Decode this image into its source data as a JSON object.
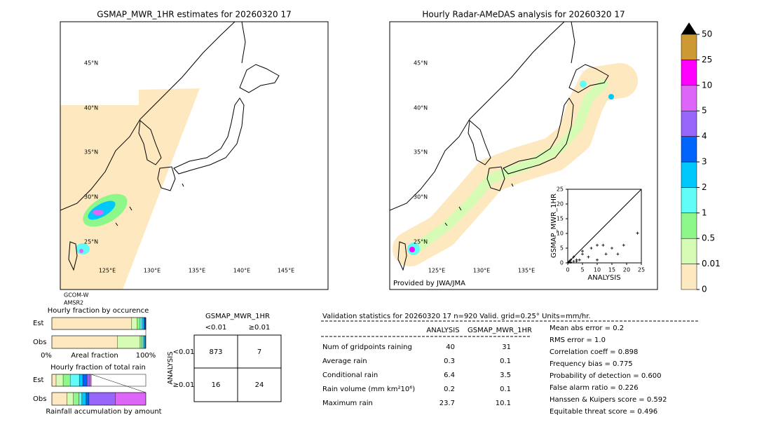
{
  "left_map": {
    "title": "GSMAP_MWR_1HR estimates for 20260320 17",
    "lat_labels": [
      "45°N",
      "40°N",
      "35°N",
      "30°N",
      "25°N"
    ],
    "lon_labels": [
      "125°E",
      "130°E",
      "135°E",
      "140°E",
      "145°E"
    ],
    "sensor": [
      "GCOM-W",
      "AMSR2"
    ]
  },
  "right_map": {
    "title": "Hourly Radar-AMeDAS analysis for 20260320 17",
    "lat_labels": [
      "45°N",
      "40°N",
      "35°N",
      "30°N",
      "25°N"
    ],
    "lon_labels": [
      "125°E",
      "130°E",
      "135°E"
    ],
    "credit": "Provided by JWA/JMA"
  },
  "scatter": {
    "type": "scatter",
    "x_label": "ANALYSIS",
    "y_label": "GSMAP_MWR_1HR",
    "xlim": [
      0,
      25
    ],
    "ylim": [
      0,
      25
    ],
    "xticks": [
      0,
      5,
      10,
      15,
      20,
      25
    ],
    "yticks": [
      0,
      5,
      10,
      15,
      20,
      25
    ],
    "x": [
      23.7,
      19,
      15,
      12,
      10,
      13,
      8,
      5,
      5,
      3,
      2,
      1,
      0.5,
      1,
      2,
      0.3,
      3,
      4,
      10,
      7,
      17
    ],
    "y": [
      10.1,
      6,
      5,
      6,
      6,
      3,
      5,
      3,
      4,
      1,
      2,
      1,
      0.5,
      0.2,
      0.5,
      0.2,
      0.5,
      1,
      1,
      2,
      3
    ]
  },
  "colorbar": {
    "boundaries": [
      0,
      0.01,
      0.5,
      1,
      2,
      3,
      4,
      5,
      10,
      25,
      50
    ],
    "colors": [
      "#fde8bf",
      "#d5fbb5",
      "#8ef78a",
      "#5ffcf8",
      "#00c8fc",
      "#0064fc",
      "#9966fb",
      "#dd66f8",
      "#ff00ff",
      "#cc9933"
    ]
  },
  "occurrence": {
    "title": "Hourly fraction by occurence",
    "rows": [
      "Est",
      "Obs"
    ],
    "est": [
      85,
      6,
      3,
      2,
      2,
      1,
      0.5,
      0.5
    ],
    "obs": [
      70,
      24,
      2,
      1.5,
      1.5,
      1
    ],
    "axis_labels": [
      "0%",
      "Areal fraction",
      "100%"
    ]
  },
  "total_rain": {
    "title": "Hourly fraction of total rain",
    "rows": [
      "Est",
      "Obs"
    ],
    "est": [
      4.5,
      7.5,
      7.5,
      9.7,
      3.7,
      4.5,
      3,
      1.5
    ],
    "obs": [
      16,
      7,
      6,
      3,
      4.5,
      3,
      28,
      32.5
    ],
    "caption": "Rainfall accumulation by amount"
  },
  "contingency": {
    "title": "GSMAP_MWR_1HR",
    "col_labels": [
      "<0.01",
      "≥0.01"
    ],
    "row_title": "ANALYSIS",
    "row_labels": [
      "<0.01",
      "≥0.01"
    ],
    "cells": [
      [
        "873",
        "7"
      ],
      [
        "16",
        "24"
      ]
    ]
  },
  "validation": {
    "header": "Validation statistics for 20260320 17  n=920 Valid. grid=0.25° Units=mm/hr.",
    "columns": [
      "ANALYSIS",
      "GSMAP_MWR_1HR"
    ],
    "rows": [
      [
        "Num of gridpoints raining",
        "40",
        "31"
      ],
      [
        "Average rain",
        "0.3",
        "0.1"
      ],
      [
        "Conditional rain",
        "6.4",
        "3.5"
      ],
      [
        "Rain volume (mm km²10⁶)",
        "0.2",
        "0.1"
      ],
      [
        "Maximum rain",
        "23.7",
        "10.1"
      ]
    ],
    "scores": [
      "Mean abs error =    0.2",
      "RMS error =    1.0",
      "Correlation coeff =  0.898",
      "Frequency bias =  0.775",
      "Probability of detection =  0.600",
      "False alarm ratio =  0.226",
      "Hanssen & Kuipers score =  0.592",
      "Equitable threat score =  0.496"
    ]
  }
}
